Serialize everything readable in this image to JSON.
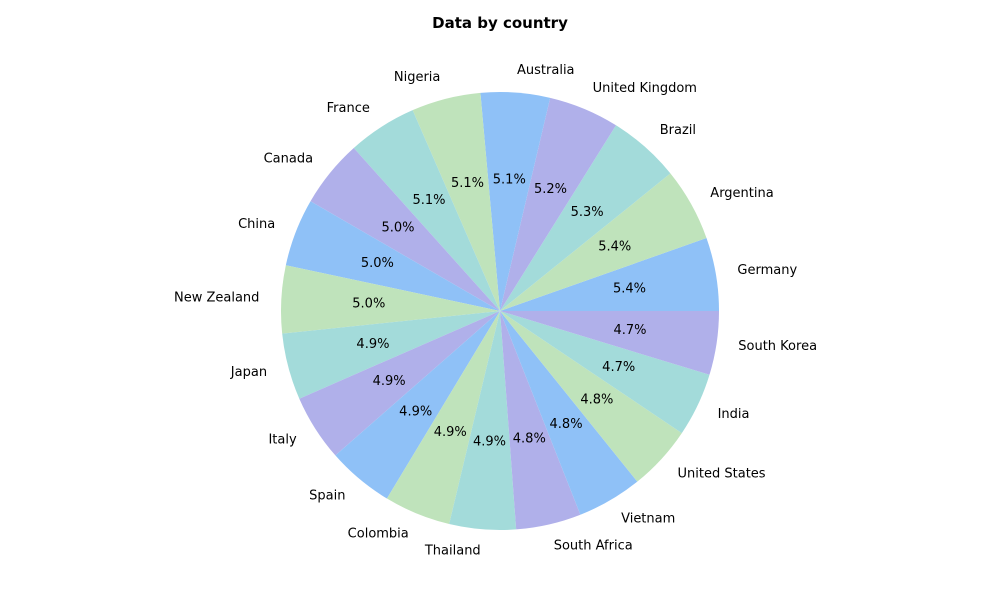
{
  "chart_data": {
    "type": "pie",
    "title": "Data by country",
    "start_angle_deg": 0,
    "direction": "counterclockwise",
    "slices": [
      {
        "label": "Germany",
        "pct_label": "5.4%",
        "value": 5.4,
        "color": "#8fc1f7"
      },
      {
        "label": "Argentina",
        "pct_label": "5.4%",
        "value": 5.4,
        "color": "#bfe3bb"
      },
      {
        "label": "Brazil",
        "pct_label": "5.3%",
        "value": 5.3,
        "color": "#a3dbda"
      },
      {
        "label": "United Kingdom",
        "pct_label": "5.2%",
        "value": 5.2,
        "color": "#b0b0ea"
      },
      {
        "label": "Australia",
        "pct_label": "5.1%",
        "value": 5.1,
        "color": "#8fc1f7"
      },
      {
        "label": "Nigeria",
        "pct_label": "5.1%",
        "value": 5.1,
        "color": "#bfe3bb"
      },
      {
        "label": "France",
        "pct_label": "5.1%",
        "value": 5.1,
        "color": "#a3dbda"
      },
      {
        "label": "Canada",
        "pct_label": "5.0%",
        "value": 5.0,
        "color": "#b0b0ea"
      },
      {
        "label": "China",
        "pct_label": "5.0%",
        "value": 5.0,
        "color": "#8fc1f7"
      },
      {
        "label": "New Zealand",
        "pct_label": "5.0%",
        "value": 5.0,
        "color": "#bfe3bb"
      },
      {
        "label": "Japan",
        "pct_label": "4.9%",
        "value": 4.9,
        "color": "#a3dbda"
      },
      {
        "label": "Italy",
        "pct_label": "4.9%",
        "value": 4.9,
        "color": "#b0b0ea"
      },
      {
        "label": "Spain",
        "pct_label": "4.9%",
        "value": 4.9,
        "color": "#8fc1f7"
      },
      {
        "label": "Colombia",
        "pct_label": "4.9%",
        "value": 4.9,
        "color": "#bfe3bb"
      },
      {
        "label": "Thailand",
        "pct_label": "4.9%",
        "value": 4.9,
        "color": "#a3dbda"
      },
      {
        "label": "South Africa",
        "pct_label": "4.8%",
        "value": 4.8,
        "color": "#b0b0ea"
      },
      {
        "label": "Vietnam",
        "pct_label": "4.8%",
        "value": 4.8,
        "color": "#8fc1f7"
      },
      {
        "label": "United States",
        "pct_label": "4.8%",
        "value": 4.8,
        "color": "#bfe3bb"
      },
      {
        "label": "India",
        "pct_label": "4.7%",
        "value": 4.7,
        "color": "#a3dbda"
      },
      {
        "label": "South Korea",
        "pct_label": "4.7%",
        "value": 4.7,
        "color": "#b0b0ea"
      }
    ]
  }
}
